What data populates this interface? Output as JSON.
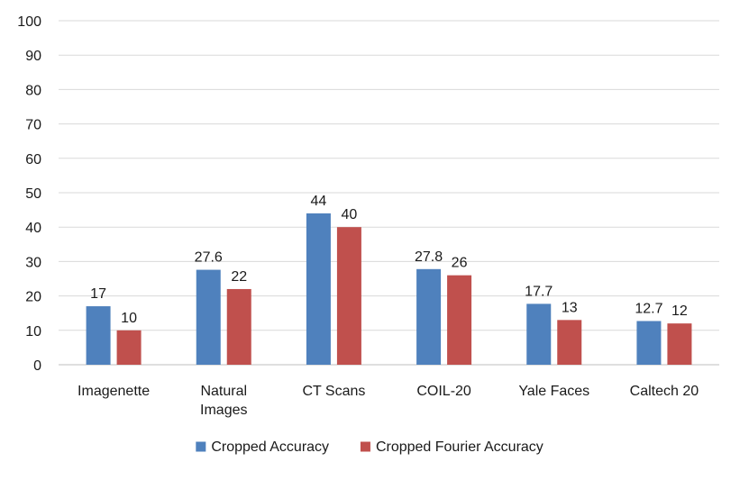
{
  "chart_data": {
    "type": "bar",
    "title": "",
    "xlabel": "",
    "ylabel": "",
    "ylim": [
      0,
      100
    ],
    "yticks": [
      0,
      10,
      20,
      30,
      40,
      50,
      60,
      70,
      80,
      90,
      100
    ],
    "grid": true,
    "legend_position": "bottom",
    "categories": [
      [
        "Imagenette"
      ],
      [
        "Natural",
        "Images"
      ],
      [
        "CT Scans"
      ],
      [
        "COIL-20"
      ],
      [
        "Yale Faces"
      ],
      [
        "Caltech 20"
      ]
    ],
    "series": [
      {
        "name": "Cropped Accuracy",
        "color": "#4f81bd",
        "values": [
          17,
          27.6,
          44,
          27.8,
          17.7,
          12.7
        ]
      },
      {
        "name": "Cropped Fourier Accuracy",
        "color": "#c0504d",
        "values": [
          10,
          22,
          40,
          26,
          13,
          12
        ]
      }
    ]
  }
}
